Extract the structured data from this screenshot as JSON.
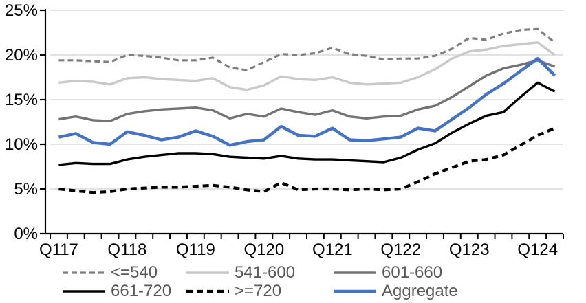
{
  "chart_data": {
    "type": "line",
    "title": "",
    "y_axis": {
      "min": 0,
      "max": 25,
      "step": 5,
      "unit": "%",
      "ticks": [
        "0%",
        "5%",
        "10%",
        "15%",
        "20%",
        "25%"
      ]
    },
    "x_axis": {
      "tick_labels": [
        "Q117",
        "Q118",
        "Q119",
        "Q120",
        "Q121",
        "Q122",
        "Q123",
        "Q124"
      ],
      "label_every_n_points": 4
    },
    "categories": [
      "Q117",
      "Q217",
      "Q317",
      "Q417",
      "Q118",
      "Q218",
      "Q318",
      "Q418",
      "Q119",
      "Q219",
      "Q319",
      "Q419",
      "Q120",
      "Q220",
      "Q320",
      "Q420",
      "Q121",
      "Q221",
      "Q321",
      "Q421",
      "Q122",
      "Q222",
      "Q322",
      "Q422",
      "Q123",
      "Q223",
      "Q323",
      "Q423",
      "Q124",
      "Q224"
    ],
    "series": [
      {
        "name": "<=540",
        "color": "#7f7f7f",
        "style": "dashed",
        "width": 3.2,
        "dash": "8 5",
        "values": [
          19.4,
          19.4,
          19.3,
          19.2,
          20.0,
          19.9,
          19.7,
          19.4,
          19.4,
          19.7,
          18.6,
          18.3,
          19.2,
          20.1,
          20.0,
          20.2,
          20.8,
          20.1,
          19.9,
          19.5,
          19.6,
          19.6,
          19.9,
          20.7,
          21.9,
          21.7,
          22.4,
          22.8,
          22.9,
          21.4
        ]
      },
      {
        "name": "541-600",
        "color": "#c9c9c9",
        "style": "solid",
        "width": 3.4,
        "dash": "",
        "values": [
          16.9,
          17.1,
          17.0,
          16.7,
          17.4,
          17.5,
          17.3,
          17.2,
          17.1,
          17.4,
          16.4,
          16.1,
          16.6,
          17.6,
          17.3,
          17.2,
          17.5,
          16.9,
          16.7,
          16.8,
          16.9,
          17.5,
          18.4,
          19.6,
          20.4,
          20.6,
          21.0,
          21.2,
          21.4,
          20.0
        ]
      },
      {
        "name": "601-660",
        "color": "#737373",
        "style": "solid",
        "width": 3.4,
        "dash": "",
        "values": [
          12.8,
          13.1,
          12.7,
          12.6,
          13.4,
          13.7,
          13.9,
          14.0,
          14.1,
          13.8,
          12.9,
          13.4,
          13.1,
          14.0,
          13.6,
          13.3,
          13.8,
          13.1,
          12.9,
          13.1,
          13.2,
          13.9,
          14.3,
          15.3,
          16.5,
          17.7,
          18.5,
          18.9,
          19.4,
          18.7
        ]
      },
      {
        "name": "661-720",
        "color": "#000000",
        "style": "solid",
        "width": 3.4,
        "dash": "",
        "values": [
          7.7,
          7.9,
          7.8,
          7.8,
          8.3,
          8.6,
          8.8,
          9.0,
          9.0,
          8.9,
          8.6,
          8.5,
          8.4,
          8.7,
          8.4,
          8.3,
          8.3,
          8.2,
          8.1,
          8.0,
          8.5,
          9.4,
          10.1,
          11.3,
          12.3,
          13.2,
          13.6,
          15.3,
          16.9,
          15.9
        ]
      },
      {
        "name": ">=720",
        "color": "#000000",
        "style": "dashed",
        "width": 4.2,
        "dash": "9 6",
        "values": [
          5.0,
          4.8,
          4.6,
          4.7,
          5.0,
          5.1,
          5.2,
          5.2,
          5.3,
          5.4,
          5.2,
          4.9,
          4.7,
          5.7,
          4.9,
          5.0,
          5.0,
          4.9,
          5.0,
          4.9,
          5.0,
          5.8,
          6.7,
          7.4,
          8.1,
          8.3,
          8.8,
          9.9,
          11.0,
          11.8
        ]
      },
      {
        "name": "Aggregate",
        "color": "#4472c4",
        "style": "solid",
        "width": 4.4,
        "dash": "",
        "values": [
          10.8,
          11.2,
          10.2,
          10.0,
          11.4,
          11.0,
          10.5,
          10.8,
          11.5,
          10.9,
          9.9,
          10.3,
          10.5,
          12.0,
          11.0,
          10.9,
          11.8,
          10.5,
          10.4,
          10.6,
          10.8,
          11.8,
          11.5,
          12.8,
          14.1,
          15.6,
          16.8,
          18.2,
          19.6,
          17.7
        ]
      }
    ],
    "gridlines": {
      "color": "#d9d9d9",
      "horizontal": true,
      "vertical": false
    },
    "axis_color": "#000000",
    "legend": {
      "position": "bottom",
      "rows": 2,
      "columns": 3,
      "text_color": "#595959"
    }
  }
}
